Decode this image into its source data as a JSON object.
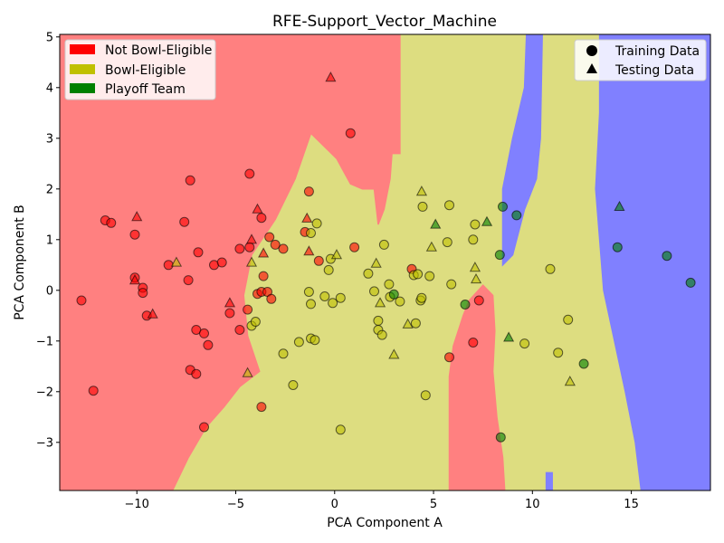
{
  "chart_data": {
    "type": "scatter",
    "title": "RFE-Support_Vector_Machine",
    "xlabel": "PCA Component A",
    "ylabel": "PCA Component B",
    "xlim": [
      -13.9,
      19.0
    ],
    "ylim": [
      -3.95,
      5.05
    ],
    "x_ticks": [
      -10,
      -5,
      0,
      5,
      10,
      15
    ],
    "y_ticks": [
      -3,
      -2,
      -1,
      0,
      1,
      2,
      3,
      4,
      5
    ],
    "tick_labels_x": [
      "−10",
      "−5",
      "0",
      "5",
      "10",
      "15"
    ],
    "tick_labels_y": [
      "−3",
      "−2",
      "−1",
      "0",
      "1",
      "2",
      "3",
      "4",
      "5"
    ],
    "grid": false,
    "class_colors": {
      "not_bowl_eligible": "#ff0000",
      "bowl_eligible": "#c0c000",
      "playoff_team": "#008000"
    },
    "region_colors": {
      "not_bowl_eligible": "#ff8080",
      "bowl_eligible": "#dddd80",
      "playoff_team": "#8080ff"
    },
    "legend_classes": {
      "placement": "top-left",
      "entries": [
        {
          "label": "Not Bowl-Eligible",
          "color": "#ff0000"
        },
        {
          "label": "Bowl-Eligible",
          "color": "#c0c000"
        },
        {
          "label": "Playoff Team",
          "color": "#008000"
        }
      ]
    },
    "legend_markers": {
      "placement": "top-right",
      "entries": [
        {
          "label": "Training Data",
          "marker": "circle"
        },
        {
          "label": "Testing Data",
          "marker": "triangle"
        }
      ]
    },
    "decision_regions": [
      {
        "class": "not_bowl_eligible",
        "polygon": [
          [
            -13.9,
            5.05
          ],
          [
            3.3,
            5.05
          ],
          [
            3.3,
            2.7
          ],
          [
            2.9,
            2.7
          ],
          [
            2.8,
            2.2
          ],
          [
            2.5,
            1.6
          ],
          [
            2.2,
            1.3
          ],
          [
            2.0,
            2.0
          ],
          [
            1.4,
            2.0
          ],
          [
            0.8,
            2.1
          ],
          [
            0.1,
            2.6
          ],
          [
            -1.2,
            3.1
          ],
          [
            -2.0,
            2.2
          ],
          [
            -3.0,
            1.4
          ],
          [
            -4.2,
            0.7
          ],
          [
            -4.6,
            -0.1
          ],
          [
            -4.4,
            -0.9
          ],
          [
            -3.8,
            -1.6
          ],
          [
            -4.8,
            -1.9
          ],
          [
            -5.6,
            -2.3
          ],
          [
            -6.5,
            -2.7
          ],
          [
            -7.4,
            -3.3
          ],
          [
            -8.2,
            -3.95
          ],
          [
            -13.9,
            -3.95
          ]
        ]
      },
      {
        "class": "not_bowl_eligible",
        "polygon": [
          [
            5.8,
            -3.95
          ],
          [
            5.8,
            -1.7
          ],
          [
            6.0,
            -1.1
          ],
          [
            6.5,
            -0.5
          ],
          [
            6.8,
            -0.2
          ],
          [
            7.5,
            0.1
          ],
          [
            8.0,
            -0.1
          ],
          [
            8.1,
            -0.8
          ],
          [
            8.0,
            -1.6
          ],
          [
            8.2,
            -2.5
          ],
          [
            8.5,
            -3.3
          ],
          [
            8.6,
            -3.95
          ]
        ]
      },
      {
        "class": "playoff_team",
        "polygon": [
          [
            8.5,
            0.5
          ],
          [
            8.5,
            2.0
          ],
          [
            9.0,
            3.0
          ],
          [
            9.6,
            4.0
          ],
          [
            9.7,
            5.05
          ],
          [
            10.5,
            5.05
          ],
          [
            10.4,
            3.0
          ],
          [
            10.2,
            2.2
          ],
          [
            9.6,
            1.6
          ],
          [
            9.0,
            0.7
          ]
        ]
      },
      {
        "class": "playoff_team",
        "polygon": [
          [
            13.4,
            5.05
          ],
          [
            19.0,
            5.05
          ],
          [
            19.0,
            -3.95
          ],
          [
            15.5,
            -3.95
          ],
          [
            15.2,
            -3.0
          ],
          [
            14.7,
            -2.0
          ],
          [
            13.6,
            0.0
          ],
          [
            13.2,
            2.0
          ],
          [
            13.4,
            3.5
          ]
        ]
      },
      {
        "class": "playoff_team",
        "polygon": [
          [
            10.7,
            -3.95
          ],
          [
            10.7,
            -3.6
          ],
          [
            11.0,
            -3.6
          ],
          [
            11.0,
            -3.95
          ]
        ]
      }
    ],
    "series": [
      {
        "name": "Training Data",
        "marker": "circle",
        "points": [
          {
            "x": -12.8,
            "y": -0.2,
            "c": "not_bowl_eligible"
          },
          {
            "x": -12.2,
            "y": -1.98,
            "c": "not_bowl_eligible"
          },
          {
            "x": -11.6,
            "y": 1.38,
            "c": "not_bowl_eligible"
          },
          {
            "x": -11.3,
            "y": 1.33,
            "c": "not_bowl_eligible"
          },
          {
            "x": -10.1,
            "y": 1.1,
            "c": "not_bowl_eligible"
          },
          {
            "x": -10.1,
            "y": 0.25,
            "c": "not_bowl_eligible"
          },
          {
            "x": -9.7,
            "y": 0.05,
            "c": "not_bowl_eligible"
          },
          {
            "x": -9.7,
            "y": -0.05,
            "c": "not_bowl_eligible"
          },
          {
            "x": -9.5,
            "y": -0.5,
            "c": "not_bowl_eligible"
          },
          {
            "x": -8.4,
            "y": 0.5,
            "c": "not_bowl_eligible"
          },
          {
            "x": -7.6,
            "y": 1.35,
            "c": "not_bowl_eligible"
          },
          {
            "x": -7.4,
            "y": 0.2,
            "c": "not_bowl_eligible"
          },
          {
            "x": -7.3,
            "y": 2.17,
            "c": "not_bowl_eligible"
          },
          {
            "x": -7.3,
            "y": -1.57,
            "c": "not_bowl_eligible"
          },
          {
            "x": -7.0,
            "y": -0.78,
            "c": "not_bowl_eligible"
          },
          {
            "x": -6.9,
            "y": 0.75,
            "c": "not_bowl_eligible"
          },
          {
            "x": -7.0,
            "y": -1.65,
            "c": "not_bowl_eligible"
          },
          {
            "x": -6.6,
            "y": -0.85,
            "c": "not_bowl_eligible"
          },
          {
            "x": -6.6,
            "y": -2.7,
            "c": "not_bowl_eligible"
          },
          {
            "x": -6.4,
            "y": -1.08,
            "c": "not_bowl_eligible"
          },
          {
            "x": -6.1,
            "y": 0.5,
            "c": "not_bowl_eligible"
          },
          {
            "x": -5.7,
            "y": 0.55,
            "c": "not_bowl_eligible"
          },
          {
            "x": -5.3,
            "y": -0.45,
            "c": "not_bowl_eligible"
          },
          {
            "x": -4.8,
            "y": 0.82,
            "c": "not_bowl_eligible"
          },
          {
            "x": -4.8,
            "y": -0.78,
            "c": "not_bowl_eligible"
          },
          {
            "x": -4.3,
            "y": 2.3,
            "c": "not_bowl_eligible"
          },
          {
            "x": -4.3,
            "y": 0.85,
            "c": "not_bowl_eligible"
          },
          {
            "x": -4.4,
            "y": -0.38,
            "c": "not_bowl_eligible"
          },
          {
            "x": -4.2,
            "y": -0.7,
            "c": "bowl_eligible"
          },
          {
            "x": -4.0,
            "y": -0.62,
            "c": "bowl_eligible"
          },
          {
            "x": -3.9,
            "y": -0.07,
            "c": "not_bowl_eligible"
          },
          {
            "x": -3.7,
            "y": 1.43,
            "c": "not_bowl_eligible"
          },
          {
            "x": -3.7,
            "y": -0.03,
            "c": "not_bowl_eligible"
          },
          {
            "x": -3.6,
            "y": 0.28,
            "c": "not_bowl_eligible"
          },
          {
            "x": -3.4,
            "y": -0.03,
            "c": "not_bowl_eligible"
          },
          {
            "x": -3.7,
            "y": -2.3,
            "c": "not_bowl_eligible"
          },
          {
            "x": -3.3,
            "y": 1.05,
            "c": "not_bowl_eligible"
          },
          {
            "x": -3.2,
            "y": -0.17,
            "c": "not_bowl_eligible"
          },
          {
            "x": -3.0,
            "y": 0.9,
            "c": "not_bowl_eligible"
          },
          {
            "x": -2.6,
            "y": 0.82,
            "c": "not_bowl_eligible"
          },
          {
            "x": -2.6,
            "y": -1.25,
            "c": "bowl_eligible"
          },
          {
            "x": -2.1,
            "y": -1.87,
            "c": "bowl_eligible"
          },
          {
            "x": -1.8,
            "y": -1.02,
            "c": "bowl_eligible"
          },
          {
            "x": -1.5,
            "y": 1.15,
            "c": "not_bowl_eligible"
          },
          {
            "x": -1.3,
            "y": 1.95,
            "c": "not_bowl_eligible"
          },
          {
            "x": -1.2,
            "y": 1.13,
            "c": "bowl_eligible"
          },
          {
            "x": -1.3,
            "y": -0.03,
            "c": "bowl_eligible"
          },
          {
            "x": -1.2,
            "y": -0.27,
            "c": "bowl_eligible"
          },
          {
            "x": -1.2,
            "y": -0.95,
            "c": "bowl_eligible"
          },
          {
            "x": -1.0,
            "y": -0.98,
            "c": "bowl_eligible"
          },
          {
            "x": -0.9,
            "y": 1.32,
            "c": "bowl_eligible"
          },
          {
            "x": -0.8,
            "y": 0.58,
            "c": "not_bowl_eligible"
          },
          {
            "x": -0.5,
            "y": -0.12,
            "c": "bowl_eligible"
          },
          {
            "x": -0.3,
            "y": 0.4,
            "c": "bowl_eligible"
          },
          {
            "x": -0.2,
            "y": 0.62,
            "c": "bowl_eligible"
          },
          {
            "x": -0.1,
            "y": -0.25,
            "c": "bowl_eligible"
          },
          {
            "x": 0.3,
            "y": -0.15,
            "c": "bowl_eligible"
          },
          {
            "x": 0.3,
            "y": -2.75,
            "c": "bowl_eligible"
          },
          {
            "x": 0.8,
            "y": 3.1,
            "c": "not_bowl_eligible"
          },
          {
            "x": 1.0,
            "y": 0.85,
            "c": "not_bowl_eligible"
          },
          {
            "x": 1.7,
            "y": 0.33,
            "c": "bowl_eligible"
          },
          {
            "x": 2.0,
            "y": -0.02,
            "c": "bowl_eligible"
          },
          {
            "x": 2.2,
            "y": -0.6,
            "c": "bowl_eligible"
          },
          {
            "x": 2.2,
            "y": -0.78,
            "c": "bowl_eligible"
          },
          {
            "x": 2.4,
            "y": -0.88,
            "c": "bowl_eligible"
          },
          {
            "x": 2.5,
            "y": 0.9,
            "c": "bowl_eligible"
          },
          {
            "x": 2.75,
            "y": 0.12,
            "c": "bowl_eligible"
          },
          {
            "x": 2.8,
            "y": -0.13,
            "c": "bowl_eligible"
          },
          {
            "x": 3.0,
            "y": -0.08,
            "c": "playoff_team"
          },
          {
            "x": 3.3,
            "y": -0.22,
            "c": "bowl_eligible"
          },
          {
            "x": 3.9,
            "y": 0.42,
            "c": "not_bowl_eligible"
          },
          {
            "x": 4.0,
            "y": 0.3,
            "c": "bowl_eligible"
          },
          {
            "x": 4.2,
            "y": 0.32,
            "c": "bowl_eligible"
          },
          {
            "x": 4.1,
            "y": -0.65,
            "c": "bowl_eligible"
          },
          {
            "x": 4.35,
            "y": -0.2,
            "c": "bowl_eligible"
          },
          {
            "x": 4.4,
            "y": -0.15,
            "c": "bowl_eligible"
          },
          {
            "x": 4.45,
            "y": 1.65,
            "c": "bowl_eligible"
          },
          {
            "x": 4.6,
            "y": -2.07,
            "c": "bowl_eligible"
          },
          {
            "x": 4.8,
            "y": 0.28,
            "c": "bowl_eligible"
          },
          {
            "x": 5.7,
            "y": 0.95,
            "c": "bowl_eligible"
          },
          {
            "x": 5.8,
            "y": 1.68,
            "c": "bowl_eligible"
          },
          {
            "x": 5.9,
            "y": 0.12,
            "c": "bowl_eligible"
          },
          {
            "x": 5.8,
            "y": -1.32,
            "c": "not_bowl_eligible"
          },
          {
            "x": 6.6,
            "y": -0.28,
            "c": "playoff_team"
          },
          {
            "x": 7.0,
            "y": 1.0,
            "c": "bowl_eligible"
          },
          {
            "x": 7.1,
            "y": 1.3,
            "c": "bowl_eligible"
          },
          {
            "x": 7.0,
            "y": -1.03,
            "c": "not_bowl_eligible"
          },
          {
            "x": 7.3,
            "y": -0.2,
            "c": "not_bowl_eligible"
          },
          {
            "x": 8.35,
            "y": 0.7,
            "c": "playoff_team"
          },
          {
            "x": 8.5,
            "y": 1.65,
            "c": "playoff_team"
          },
          {
            "x": 8.4,
            "y": -2.9,
            "c": "playoff_team"
          },
          {
            "x": 9.2,
            "y": 1.48,
            "c": "playoff_team"
          },
          {
            "x": 9.6,
            "y": -1.05,
            "c": "bowl_eligible"
          },
          {
            "x": 10.9,
            "y": 0.42,
            "c": "bowl_eligible"
          },
          {
            "x": 11.3,
            "y": -1.23,
            "c": "bowl_eligible"
          },
          {
            "x": 11.8,
            "y": -0.58,
            "c": "bowl_eligible"
          },
          {
            "x": 12.6,
            "y": -1.45,
            "c": "playoff_team"
          },
          {
            "x": 14.3,
            "y": 0.85,
            "c": "playoff_team"
          },
          {
            "x": 16.8,
            "y": 0.68,
            "c": "playoff_team"
          },
          {
            "x": 18.0,
            "y": 0.15,
            "c": "playoff_team"
          }
        ]
      },
      {
        "name": "Testing Data",
        "marker": "triangle",
        "points": [
          {
            "x": -10.0,
            "y": 1.45,
            "c": "not_bowl_eligible"
          },
          {
            "x": -10.1,
            "y": 0.2,
            "c": "not_bowl_eligible"
          },
          {
            "x": -9.2,
            "y": -0.47,
            "c": "not_bowl_eligible"
          },
          {
            "x": -8.0,
            "y": 0.55,
            "c": "bowl_eligible"
          },
          {
            "x": -5.3,
            "y": -0.25,
            "c": "not_bowl_eligible"
          },
          {
            "x": -4.2,
            "y": 1.0,
            "c": "not_bowl_eligible"
          },
          {
            "x": -4.2,
            "y": 0.55,
            "c": "bowl_eligible"
          },
          {
            "x": -3.9,
            "y": 1.6,
            "c": "not_bowl_eligible"
          },
          {
            "x": -3.6,
            "y": 0.73,
            "c": "not_bowl_eligible"
          },
          {
            "x": -4.4,
            "y": -1.63,
            "c": "bowl_eligible"
          },
          {
            "x": -1.4,
            "y": 1.42,
            "c": "not_bowl_eligible"
          },
          {
            "x": -1.3,
            "y": 0.77,
            "c": "not_bowl_eligible"
          },
          {
            "x": -0.2,
            "y": 4.2,
            "c": "not_bowl_eligible"
          },
          {
            "x": 0.1,
            "y": 0.7,
            "c": "bowl_eligible"
          },
          {
            "x": 2.1,
            "y": 0.53,
            "c": "bowl_eligible"
          },
          {
            "x": 2.3,
            "y": -0.25,
            "c": "bowl_eligible"
          },
          {
            "x": 3.0,
            "y": -1.27,
            "c": "bowl_eligible"
          },
          {
            "x": 3.7,
            "y": -0.67,
            "c": "bowl_eligible"
          },
          {
            "x": 4.4,
            "y": 1.95,
            "c": "bowl_eligible"
          },
          {
            "x": 4.9,
            "y": 0.85,
            "c": "bowl_eligible"
          },
          {
            "x": 5.1,
            "y": 1.3,
            "c": "playoff_team"
          },
          {
            "x": 7.1,
            "y": 0.45,
            "c": "bowl_eligible"
          },
          {
            "x": 7.15,
            "y": 0.22,
            "c": "bowl_eligible"
          },
          {
            "x": 7.7,
            "y": 1.35,
            "c": "playoff_team"
          },
          {
            "x": 8.8,
            "y": -0.93,
            "c": "playoff_team"
          },
          {
            "x": 11.9,
            "y": -1.8,
            "c": "bowl_eligible"
          },
          {
            "x": 14.4,
            "y": 1.65,
            "c": "playoff_team"
          }
        ]
      }
    ]
  }
}
